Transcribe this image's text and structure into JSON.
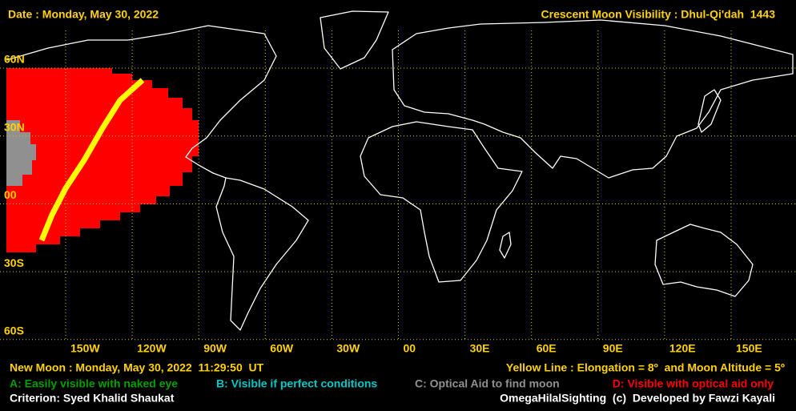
{
  "header": {
    "date": "Date : Monday, May 30, 2022",
    "title": "Crescent Moon Visibility : Dhul-Qi'dah  1443"
  },
  "map": {
    "lat_labels": [
      "60N",
      "30N",
      "00",
      "30S",
      "60S"
    ],
    "lon_labels": [
      "150W",
      "120W",
      "90W",
      "60W",
      "30W",
      "00",
      "30E",
      "60E",
      "90E",
      "120E",
      "150E"
    ]
  },
  "footer": {
    "new_moon": "New Moon : Monday, May 30, 2022  11:29:50  UT",
    "yellow_line": "Yellow Line : Elongation = 8º  and Moon Altitude = 5º",
    "legend": [
      {
        "text": "A: Easily visible with naked eye",
        "color": "#00a000"
      },
      {
        "text": "B: Visible if perfect conditions",
        "color": "#00c8c8"
      },
      {
        "text": "C: Optical Aid to find moon",
        "color": "#909090"
      },
      {
        "text": "D: Visible with optical aid only",
        "color": "#ff0000"
      }
    ],
    "criterion": "Criterion: Syed Khalid Shaukat",
    "credit": "OmegaHilalSighting  (c)  Developed by Fawzi Kayali"
  }
}
